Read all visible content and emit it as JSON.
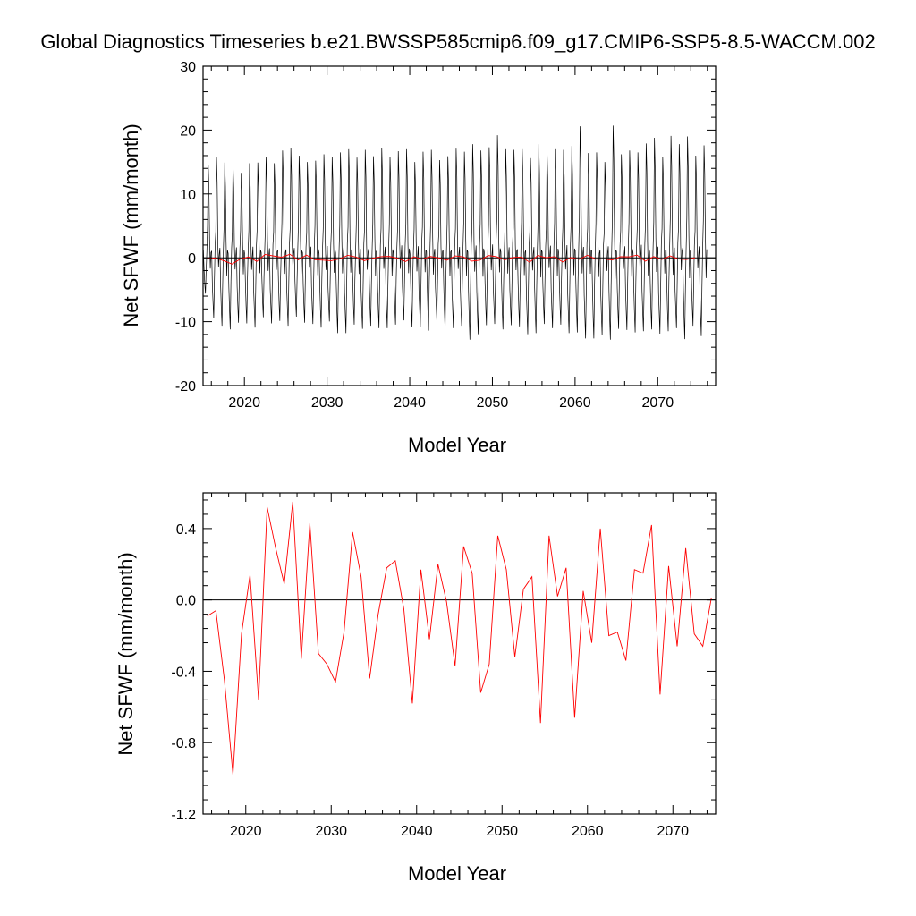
{
  "title": "Global Diagnostics Timeseries b.e21.BWSSP585cmip6.f09_g17.CMIP6-SSP5-8.5-WACCM.002",
  "chart_data": [
    {
      "type": "line",
      "xlabel": "Model Year",
      "ylabel": "Net SFWF (mm/month)",
      "xlim": [
        2015,
        2077
      ],
      "ylim": [
        -20,
        30
      ],
      "x_ticks": [
        2020,
        2030,
        2040,
        2050,
        2060,
        2070
      ],
      "y_ticks": [
        -20,
        -10,
        0,
        10,
        20,
        30
      ],
      "y_tick_labels": [
        "-20",
        "-10",
        "0",
        "10",
        "20",
        "30"
      ],
      "zero_line": true,
      "series": [
        {
          "color": "#000000",
          "description_of_pattern": "monthly values, one peak and trough per year",
          "x_start": 2015.04,
          "x_step": 0.0833,
          "annual_peaks": [
            14.6,
            15.8,
            14.9,
            14.7,
            13.3,
            14.8,
            14.9,
            15.8,
            14.8,
            16.8,
            17.2,
            16.0,
            15.0,
            15.2,
            16.2,
            15.8,
            16.5,
            17.0,
            15.7,
            16.9,
            15.9,
            17.2,
            15.8,
            16.7,
            17.0,
            15.0,
            16.6,
            16.9,
            15.3,
            15.9,
            17.1,
            16.6,
            17.8,
            16.8,
            17.3,
            19.2,
            17.0,
            16.9,
            17.0,
            15.6,
            17.8,
            16.8,
            17.0,
            16.9,
            17.5,
            20.6,
            16.4,
            16.5,
            15.0,
            20.7,
            16.2,
            16.8,
            16.5,
            17.9,
            18.8,
            15.8,
            19.1,
            17.8,
            19.0,
            16.0,
            17.6
          ],
          "annual_troughs": [
            -5.9,
            -10.0,
            -11.2,
            -11.8,
            -10.7,
            -10.8,
            -11.5,
            -9.8,
            -10.8,
            -10.4,
            -11.2,
            -9.7,
            -10.7,
            -10.9,
            -11.5,
            -10.5,
            -12.4,
            -12.4,
            -11.0,
            -11.7,
            -11.2,
            -11.6,
            -11.6,
            -11.0,
            -10.3,
            -11.4,
            -11.4,
            -12.0,
            -10.3,
            -11.9,
            -11.6,
            -11.2,
            -13.5,
            -12.6,
            -11.1,
            -10.9,
            -11.8,
            -11.1,
            -11.3,
            -12.6,
            -12.4,
            -10.9,
            -11.6,
            -11.0,
            -12.4,
            -12.3,
            -13.3,
            -13.3,
            -12.7,
            -13.5,
            -11.7,
            -11.9,
            -12.3,
            -12.1,
            -11.8,
            -12.5,
            -12.1,
            -11.6,
            -13.4,
            -11.2,
            -12.9
          ]
        },
        {
          "color": "#ff0000",
          "annual_mean_ref": "chart_data.1.series.0.values"
        }
      ]
    },
    {
      "type": "line",
      "xlabel": "Model Year",
      "ylabel": "Net SFWF (mm/month)",
      "xlim": [
        2015,
        2075
      ],
      "ylim": [
        -1.2,
        0.6
      ],
      "x_ticks": [
        2020,
        2030,
        2040,
        2050,
        2060,
        2070
      ],
      "y_ticks": [
        -1.2,
        -0.8,
        -0.4,
        0.0,
        0.4
      ],
      "y_tick_labels": [
        "-1.2",
        "-0.8",
        "-0.4",
        "0.0",
        "0.4"
      ],
      "zero_line": true,
      "series": [
        {
          "color": "#ff0000",
          "x_start": 2015.5,
          "x_step": 1,
          "values": [
            -0.09,
            -0.06,
            -0.45,
            -0.98,
            -0.19,
            0.14,
            -0.56,
            0.52,
            0.29,
            0.09,
            0.55,
            -0.33,
            0.43,
            -0.3,
            -0.36,
            -0.46,
            -0.18,
            0.38,
            0.13,
            -0.44,
            -0.08,
            0.18,
            0.22,
            -0.05,
            -0.58,
            0.17,
            -0.22,
            0.2,
            -0.01,
            -0.37,
            0.3,
            0.15,
            -0.52,
            -0.36,
            0.36,
            0.17,
            -0.32,
            0.06,
            0.13,
            -0.69,
            0.36,
            0.02,
            0.18,
            -0.66,
            0.05,
            -0.24,
            0.4,
            -0.2,
            -0.18,
            -0.34,
            0.17,
            0.15,
            0.42,
            -0.53,
            0.19,
            -0.26,
            0.29,
            -0.19,
            -0.26,
            0.01
          ]
        }
      ]
    }
  ]
}
